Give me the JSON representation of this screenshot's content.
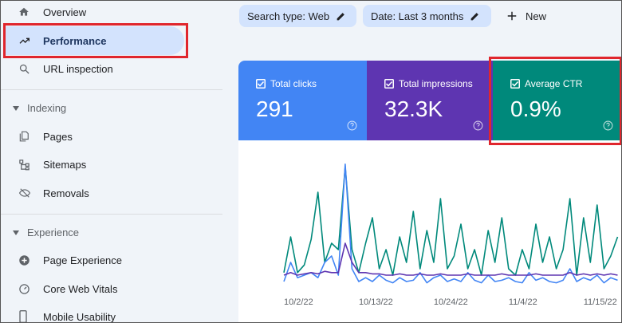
{
  "sidebar": {
    "items": [
      "Overview",
      "Performance",
      "URL inspection"
    ],
    "sections": [
      {
        "title": "Indexing",
        "items": [
          "Pages",
          "Sitemaps",
          "Removals"
        ]
      },
      {
        "title": "Experience",
        "items": [
          "Page Experience",
          "Core Web Vitals",
          "Mobile Usability"
        ]
      }
    ]
  },
  "filters": [
    "Search type: Web",
    "Date: Last 3 months"
  ],
  "new_button": "New",
  "metrics": [
    {
      "label": "Total clicks",
      "value": "291",
      "color": "#4285f4"
    },
    {
      "label": "Total impressions",
      "value": "32.3K",
      "color": "#5e35b1"
    },
    {
      "label": "Average CTR",
      "value": "0.9%",
      "color": "#00897b"
    }
  ],
  "chart_data": {
    "type": "line",
    "xlim": [
      0,
      50
    ],
    "xticks": [
      {
        "value": 0,
        "label": "10/2/22"
      },
      {
        "value": 11,
        "label": "10/13/22"
      },
      {
        "value": 22,
        "label": "10/24/22"
      },
      {
        "value": 33,
        "label": "11/4/22"
      },
      {
        "value": 44,
        "label": "11/15/22"
      }
    ],
    "ylim": [
      0,
      100
    ],
    "series": [
      {
        "color": "#00897b",
        "values": [
          12,
          40,
          12,
          18,
          38,
          75,
          20,
          35,
          30,
          95,
          30,
          12,
          35,
          55,
          15,
          30,
          10,
          40,
          20,
          60,
          15,
          45,
          20,
          70,
          15,
          25,
          50,
          15,
          30,
          10,
          45,
          20,
          55,
          15,
          10,
          30,
          15,
          50,
          20,
          40,
          15,
          30,
          70,
          10,
          55,
          20,
          65,
          15,
          25,
          40
        ]
      },
      {
        "color": "#4285f4",
        "values": [
          5,
          20,
          8,
          10,
          12,
          8,
          20,
          25,
          10,
          97,
          15,
          5,
          8,
          5,
          10,
          6,
          4,
          8,
          5,
          6,
          12,
          4,
          8,
          10,
          5,
          7,
          5,
          12,
          6,
          4,
          10,
          5,
          6,
          8,
          5,
          4,
          12,
          6,
          8,
          5,
          4,
          6,
          15,
          5,
          8,
          6,
          10,
          4,
          8,
          6
        ]
      },
      {
        "color": "#5e35b1",
        "values": [
          10,
          12,
          10,
          11,
          12,
          11,
          13,
          12,
          12,
          35,
          20,
          12,
          12,
          11,
          11,
          10,
          10,
          11,
          10,
          10,
          11,
          10,
          10,
          11,
          10,
          10,
          10,
          11,
          10,
          10,
          10,
          10,
          11,
          10,
          10,
          10,
          10,
          11,
          10,
          10,
          10,
          10,
          12,
          10,
          11,
          10,
          11,
          10,
          11,
          10
        ]
      }
    ]
  }
}
